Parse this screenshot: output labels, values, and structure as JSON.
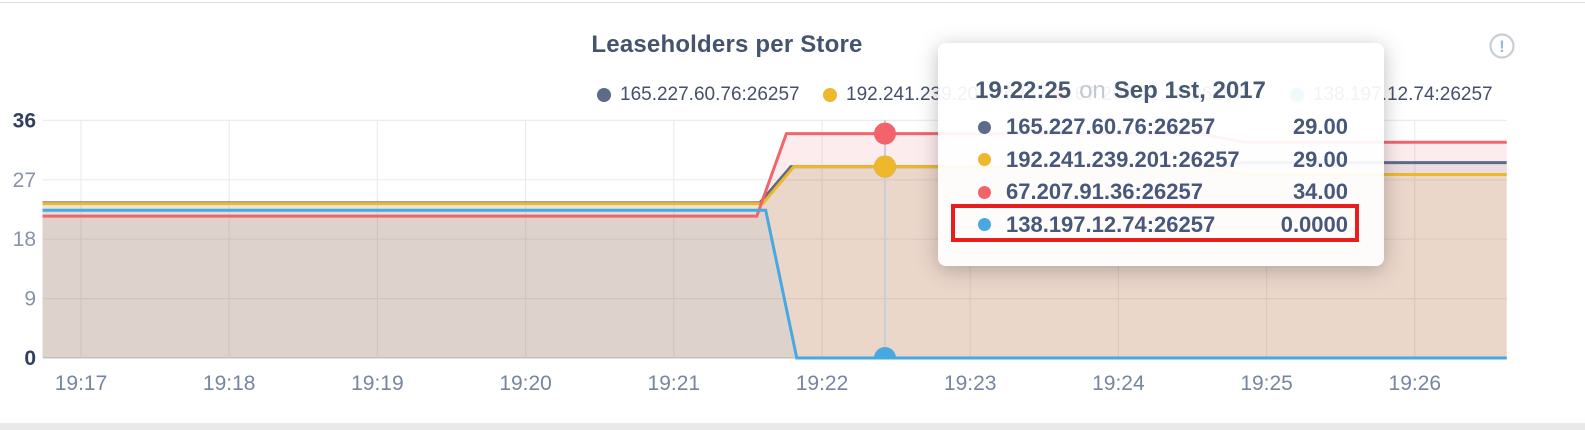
{
  "chart": {
    "title": "Leaseholders per Store",
    "info_icon": "!"
  },
  "chart_data": {
    "type": "area",
    "title": "Leaseholders per Store",
    "x_ticks": [
      "19:17",
      "19:18",
      "19:19",
      "19:20",
      "19:21",
      "19:22",
      "19:23",
      "19:24",
      "19:25",
      "19:26"
    ],
    "y_ticks": [
      0,
      9,
      18,
      27,
      36
    ],
    "ylim": [
      0,
      36
    ],
    "x_axis_note": "time of day, one-minute gridlines",
    "grid": true,
    "legend_position": "top",
    "series": [
      {
        "name": "165.227.60.76:26257",
        "color": "#5c6b88",
        "points": [
          [
            16.74,
            23.5
          ],
          [
            21.58,
            23.5
          ],
          [
            21.79,
            29.0
          ],
          [
            24.55,
            29.0
          ],
          [
            24.85,
            29.6
          ],
          [
            26.62,
            29.6
          ]
        ]
      },
      {
        "name": "192.241.239.201:26257",
        "color": "#eeb82c",
        "points": [
          [
            16.74,
            23.4
          ],
          [
            21.6,
            23.4
          ],
          [
            21.81,
            29.0
          ],
          [
            24.55,
            29.0
          ],
          [
            24.85,
            27.8
          ],
          [
            26.62,
            27.8
          ]
        ]
      },
      {
        "name": "67.207.91.36:26257",
        "color": "#f2646c",
        "points": [
          [
            16.74,
            21.5
          ],
          [
            21.56,
            21.5
          ],
          [
            21.76,
            34.0
          ],
          [
            24.55,
            34.0
          ],
          [
            24.85,
            32.7
          ],
          [
            26.62,
            32.7
          ]
        ]
      },
      {
        "name": "138.197.12.74:26257",
        "color": "#47a8e2",
        "points": [
          [
            16.74,
            22.4
          ],
          [
            21.62,
            22.4
          ],
          [
            21.83,
            0.0
          ],
          [
            26.62,
            0.0
          ]
        ]
      }
    ],
    "hover": {
      "t": 22.425,
      "time_label": "19:22:25",
      "dots": [
        {
          "series": 0,
          "v": 29.0
        },
        {
          "series": 1,
          "v": 29.0
        },
        {
          "series": 2,
          "v": 34.0
        },
        {
          "series": 3,
          "v": 0.0
        }
      ]
    }
  },
  "tooltip": {
    "time": "19:22:25",
    "on_word": "on",
    "date": "Sep 1st, 2017",
    "rows": [
      {
        "label": "165.227.60.76:26257",
        "value": "29.00"
      },
      {
        "label": "192.241.239.201:26257",
        "value": "29.00"
      },
      {
        "label": "67.207.91.36:26257",
        "value": "34.00"
      },
      {
        "label": "138.197.12.74:26257",
        "value": "0.0000"
      }
    ],
    "highlighted_row": 3
  }
}
